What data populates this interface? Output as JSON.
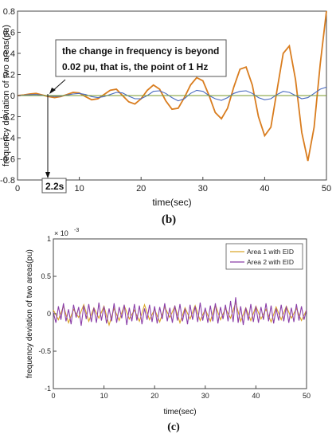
{
  "chart_data": [
    {
      "type": "line",
      "caption": "(b)",
      "xlabel": "time(sec)",
      "ylabel": "frequency deviation of two areas(pu)",
      "xlim": [
        0,
        50
      ],
      "ylim": [
        -0.8,
        0.8
      ],
      "xticks": [
        "0",
        "10",
        "20",
        "30",
        "40",
        "50"
      ],
      "yticks": [
        "0.8",
        "0.6",
        "0.4",
        "0.2",
        "0",
        "-0.2",
        "-0.4",
        "-0.6",
        "-0.8"
      ],
      "xtick_values": [
        0,
        10,
        20,
        30,
        40,
        50
      ],
      "ytick_values": [
        0.8,
        0.6,
        0.4,
        0.2,
        0,
        -0.2,
        -0.4,
        -0.6,
        -0.8
      ],
      "grid": false,
      "annotation": {
        "lines": [
          "the change in frequency is beyond",
          "0.02 pu, that is, the point of 1 Hz"
        ],
        "arrow_target": {
          "x": 2.2,
          "y": 0.02
        }
      },
      "marker": {
        "label": "2.2s",
        "x": 2.2
      },
      "series": [
        {
          "color": "#d97d1f",
          "x": [
            0,
            1,
            2,
            3,
            4,
            5,
            6,
            7,
            8,
            9,
            10,
            11,
            12,
            13,
            14,
            15,
            16,
            17,
            18,
            19,
            20,
            21,
            22,
            23,
            24,
            25,
            26,
            27,
            28,
            29,
            30,
            31,
            32,
            33,
            34,
            35,
            36,
            37,
            38,
            39,
            40,
            41,
            42,
            43,
            44,
            45,
            46,
            47,
            48,
            49,
            50
          ],
          "values": [
            0,
            0.005,
            0.015,
            0.02,
            0.005,
            -0.01,
            -0.02,
            -0.01,
            0.01,
            0.03,
            0.025,
            -0.01,
            -0.04,
            -0.03,
            0.01,
            0.05,
            0.06,
            0.0,
            -0.06,
            -0.08,
            -0.03,
            0.05,
            0.1,
            0.06,
            -0.05,
            -0.13,
            -0.12,
            -0.02,
            0.1,
            0.17,
            0.14,
            0.0,
            -0.16,
            -0.22,
            -0.12,
            0.08,
            0.25,
            0.27,
            0.1,
            -0.2,
            -0.38,
            -0.3,
            0.05,
            0.4,
            0.47,
            0.15,
            -0.35,
            -0.62,
            -0.3,
            0.3,
            0.8
          ]
        },
        {
          "color": "#4a6bbf",
          "x": [
            0,
            1,
            2,
            3,
            4,
            5,
            6,
            7,
            8,
            9,
            10,
            11,
            12,
            13,
            14,
            15,
            16,
            17,
            18,
            19,
            20,
            21,
            22,
            23,
            24,
            25,
            26,
            27,
            28,
            29,
            30,
            31,
            32,
            33,
            34,
            35,
            36,
            37,
            38,
            39,
            40,
            41,
            42,
            43,
            44,
            45,
            46,
            47,
            48,
            49,
            50
          ],
          "values": [
            0,
            0.003,
            0.008,
            0.01,
            0.004,
            -0.004,
            -0.008,
            -0.005,
            0.005,
            0.015,
            0.02,
            0.01,
            -0.01,
            -0.02,
            -0.01,
            0.01,
            0.03,
            0.025,
            -0.005,
            -0.03,
            -0.03,
            0.0,
            0.04,
            0.045,
            0.02,
            -0.02,
            -0.05,
            -0.03,
            0.02,
            0.05,
            0.04,
            0.0,
            -0.03,
            -0.045,
            -0.02,
            0.02,
            0.04,
            0.045,
            0.02,
            -0.02,
            -0.04,
            -0.03,
            0.01,
            0.04,
            0.03,
            0.0,
            -0.03,
            -0.02,
            0.02,
            0.06,
            0.08
          ]
        },
        {
          "color": "#7a9a28",
          "x": [
            0,
            50
          ],
          "values": [
            0,
            0
          ]
        }
      ]
    },
    {
      "type": "line",
      "caption": "(c)",
      "xlabel": "time(sec)",
      "ylabel": "frequency deviation of two areas(pu)",
      "xlim": [
        0,
        50
      ],
      "ylim": [
        -1,
        1
      ],
      "scale_label": "× 10",
      "scale_exponent": "-3",
      "xticks": [
        "0",
        "10",
        "20",
        "30",
        "40",
        "50"
      ],
      "yticks": [
        "1",
        "0.5",
        "0",
        "-0.5",
        "-1"
      ],
      "xtick_values": [
        0,
        10,
        20,
        30,
        40,
        50
      ],
      "ytick_values": [
        1,
        0.5,
        0,
        -0.5,
        -1
      ],
      "grid": false,
      "legend_position": "top-right",
      "series": [
        {
          "name": "Area 1 with EID",
          "color": "#d9a62a",
          "x": [
            0,
            1,
            2,
            3,
            4,
            5,
            6,
            7,
            8,
            9,
            10,
            11,
            12,
            13,
            14,
            15,
            16,
            17,
            18,
            19,
            20,
            21,
            22,
            23,
            24,
            25,
            26,
            27,
            28,
            29,
            30,
            31,
            32,
            33,
            34,
            35,
            36,
            37,
            38,
            39,
            40,
            41,
            42,
            43,
            44,
            45,
            46,
            47,
            48,
            49,
            50
          ],
          "values": [
            0.05,
            -0.08,
            0.1,
            -0.12,
            0.06,
            -0.05,
            0.12,
            -0.1,
            0.08,
            -0.06,
            0.1,
            -0.15,
            0.07,
            -0.09,
            0.11,
            -0.07,
            0.05,
            -0.1,
            0.12,
            -0.08,
            0.06,
            -0.11,
            0.09,
            -0.05,
            0.1,
            -0.12,
            0.08,
            -0.07,
            0.11,
            -0.09,
            0.06,
            -0.1,
            0.12,
            -0.08,
            0.07,
            -0.06,
            0.15,
            -0.1,
            0.08,
            -0.09,
            0.1,
            -0.07,
            0.06,
            -0.11,
            0.09,
            -0.08,
            0.1,
            -0.06,
            0.07,
            -0.09,
            0.05
          ]
        },
        {
          "name": "Area 2 with EID",
          "color": "#8b3fa8",
          "x": [
            0,
            0.5,
            1,
            1.5,
            2,
            2.5,
            3,
            3.5,
            4,
            4.5,
            5,
            5.5,
            6,
            6.5,
            7,
            7.5,
            8,
            8.5,
            9,
            9.5,
            10,
            10.5,
            11,
            11.5,
            12,
            12.5,
            13,
            13.5,
            14,
            14.5,
            15,
            15.5,
            16,
            16.5,
            17,
            17.5,
            18,
            18.5,
            19,
            19.5,
            20,
            20.5,
            21,
            21.5,
            22,
            22.5,
            23,
            23.5,
            24,
            24.5,
            25,
            25.5,
            26,
            26.5,
            27,
            27.5,
            28,
            28.5,
            29,
            29.5,
            30,
            30.5,
            31,
            31.5,
            32,
            32.5,
            33,
            33.5,
            34,
            34.5,
            35,
            35.5,
            36,
            36.5,
            37,
            37.5,
            38,
            38.5,
            39,
            39.5,
            40,
            40.5,
            41,
            41.5,
            42,
            42.5,
            43,
            43.5,
            44,
            44.5,
            45,
            45.5,
            46,
            46.5,
            47,
            47.5,
            48,
            48.5,
            49,
            49.5,
            50
          ],
          "values": [
            0.02,
            -0.12,
            0.1,
            -0.08,
            0.14,
            -0.1,
            0.06,
            -0.14,
            0.12,
            -0.05,
            0.09,
            -0.16,
            0.11,
            -0.07,
            0.13,
            -0.11,
            0.08,
            -0.12,
            0.15,
            -0.09,
            0.1,
            -0.13,
            0.07,
            -0.1,
            0.14,
            -0.12,
            0.09,
            -0.06,
            0.12,
            -0.15,
            0.08,
            -0.1,
            0.13,
            -0.09,
            0.11,
            -0.14,
            0.07,
            -0.08,
            0.12,
            -0.11,
            0.1,
            -0.13,
            0.09,
            -0.07,
            0.14,
            -0.1,
            0.08,
            -0.12,
            0.11,
            -0.09,
            0.13,
            -0.1,
            0.07,
            -0.14,
            0.12,
            -0.08,
            0.1,
            -0.11,
            0.15,
            -0.09,
            0.08,
            -0.12,
            0.11,
            -0.1,
            0.14,
            -0.13,
            0.09,
            -0.07,
            0.12,
            -0.1,
            0.17,
            -0.11,
            0.22,
            -0.12,
            0.1,
            -0.15,
            0.08,
            -0.09,
            0.13,
            -0.11,
            0.1,
            -0.12,
            0.09,
            -0.08,
            0.14,
            -0.1,
            0.11,
            -0.13,
            0.07,
            -0.09,
            0.12,
            -0.1,
            0.1,
            -0.12,
            0.08,
            -0.11,
            0.13,
            -0.09,
            0.1,
            -0.08,
            0.05
          ]
        }
      ]
    }
  ]
}
